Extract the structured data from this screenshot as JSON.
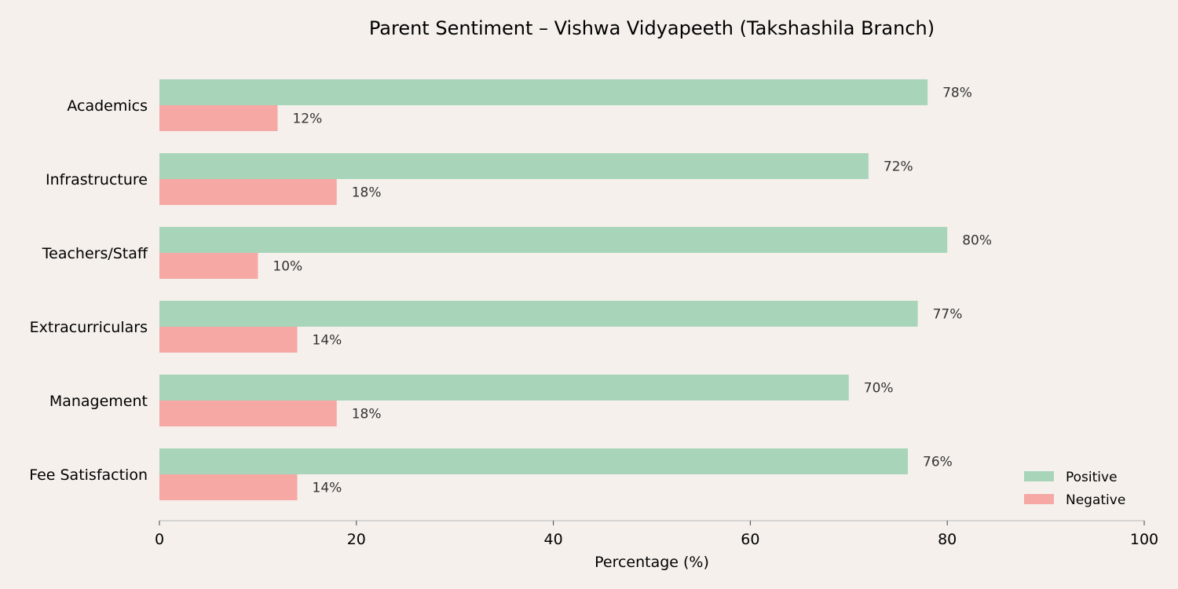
{
  "chart_data": {
    "type": "bar",
    "orientation": "horizontal",
    "title": "Parent Sentiment – Vishwa Vidyapeeth (Takshashila Branch)",
    "xlabel": "Percentage (%)",
    "ylabel": "",
    "xlim": [
      0,
      100
    ],
    "xticks": [
      0,
      20,
      40,
      60,
      80,
      100
    ],
    "categories": [
      "Academics",
      "Infrastructure",
      "Teachers/Staff",
      "Extracurriculars",
      "Management",
      "Fee Satisfaction"
    ],
    "series": [
      {
        "name": "Positive",
        "color": "#a8d5b9",
        "values": [
          78,
          72,
          80,
          77,
          70,
          76
        ]
      },
      {
        "name": "Negative",
        "color": "#f5a8a4",
        "values": [
          12,
          18,
          10,
          14,
          18,
          14
        ]
      }
    ],
    "value_suffix": "%",
    "legend": {
      "placement": "bottom-right"
    },
    "grid": false
  }
}
